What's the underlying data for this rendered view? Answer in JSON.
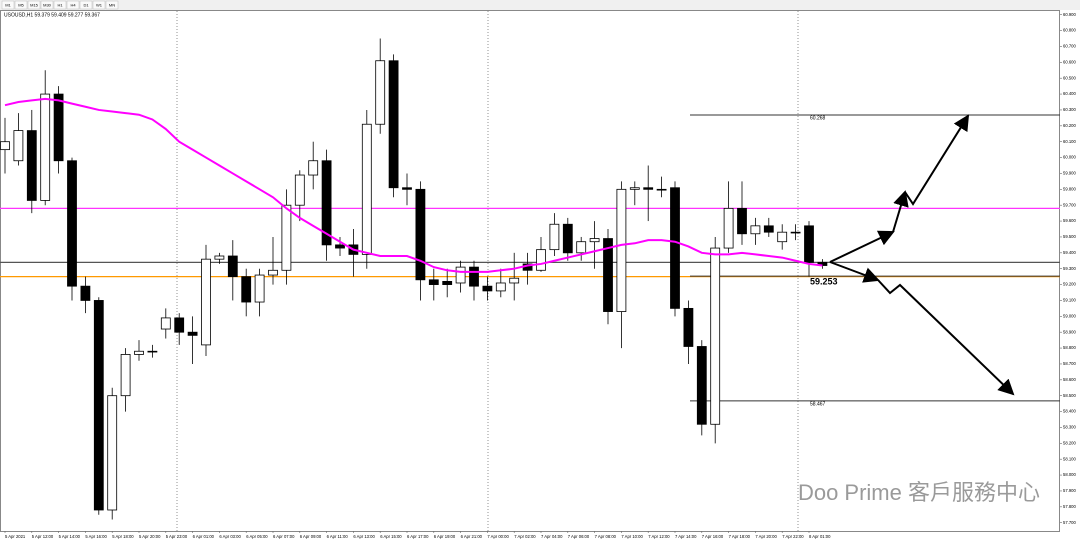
{
  "chart_data": {
    "type": "candlestick",
    "timeframes": [
      "M1",
      "M5",
      "M15",
      "M30",
      "H1",
      "H4",
      "D1",
      "W1",
      "MN"
    ],
    "subtitle": "USOUSD,H1 59.379 59.409 59.277 59.367",
    "watermark": "Doo Prime 客戶服務中心",
    "categories": [
      "5 Apr 2021",
      null,
      "5 Apr 12:00",
      null,
      "5 Apr 14:00",
      null,
      "5 Apr 16:00",
      null,
      "5 Apr 18:00",
      null,
      "5 Apr 20:00",
      null,
      "5 Apr 23:00",
      null,
      "6 Apr 01:00",
      null,
      "6 Apr 03:00",
      null,
      "6 Apr 05:00",
      null,
      "6 Apr 07:00",
      null,
      "6 Apr 09:00",
      null,
      "6 Apr 11:00",
      null,
      "6 Apr 13:00",
      null,
      "6 Apr 15:00",
      null,
      "6 Apr 17:00",
      null,
      "6 Apr 19:00",
      null,
      "6 Apr 21:00",
      null,
      "7 Apr 00:00",
      null,
      "7 Apr 02:00",
      null,
      "7 Apr 04:00",
      null,
      "7 Apr 06:00",
      null,
      "7 Apr 08:00",
      null,
      "7 Apr 10:00",
      null,
      "7 Apr 12:00",
      null,
      "7 Apr 14:00",
      null,
      "7 Apr 16:00",
      null,
      "7 Apr 18:00",
      null,
      "7 Apr 20:00",
      null,
      "7 Apr 22:00",
      null,
      "8 Apr 01:00",
      null
    ],
    "open": [
      60.05,
      59.98,
      60.17,
      59.73,
      60.4,
      59.98,
      59.19,
      59.1,
      57.78,
      58.5,
      58.76,
      58.78,
      58.92,
      58.99,
      58.9,
      58.82,
      59.36,
      59.38,
      59.25,
      59.09,
      59.26,
      59.29,
      59.7,
      59.89,
      59.98,
      59.45,
      59.45,
      59.39,
      60.21,
      60.61,
      59.81,
      59.8,
      59.23,
      59.22,
      59.21,
      59.31,
      59.19,
      59.16,
      59.21,
      59.33,
      59.29,
      59.42,
      59.58,
      59.4,
      59.47,
      59.49,
      59.03,
      59.8,
      59.81,
      59.8,
      59.81,
      59.05,
      58.81,
      58.32,
      59.43,
      59.68,
      59.52,
      59.57,
      59.47,
      59.53,
      59.57,
      59.34
    ],
    "high": [
      60.25,
      60.28,
      60.3,
      60.55,
      60.45,
      60.0,
      59.25,
      59.12,
      58.55,
      58.8,
      58.85,
      58.82,
      59.05,
      59.02,
      59.0,
      59.45,
      59.4,
      59.48,
      59.3,
      59.3,
      59.5,
      59.8,
      59.92,
      60.1,
      60.05,
      59.5,
      59.55,
      60.3,
      60.75,
      60.65,
      59.9,
      59.85,
      59.3,
      59.3,
      59.35,
      59.35,
      59.25,
      59.3,
      59.4,
      59.4,
      59.5,
      59.65,
      59.62,
      59.5,
      59.6,
      59.55,
      59.85,
      59.85,
      59.95,
      59.88,
      59.85,
      59.1,
      58.85,
      59.5,
      59.85,
      59.85,
      59.62,
      59.62,
      59.58,
      59.58,
      59.6,
      59.36
    ],
    "low": [
      59.9,
      59.95,
      59.65,
      59.7,
      59.9,
      59.1,
      59.02,
      57.75,
      57.72,
      58.4,
      58.72,
      58.74,
      58.86,
      58.82,
      58.7,
      58.75,
      59.33,
      59.1,
      59.0,
      59.0,
      59.2,
      59.2,
      59.6,
      59.8,
      59.35,
      59.38,
      59.25,
      59.3,
      60.15,
      59.75,
      59.7,
      59.1,
      59.1,
      59.12,
      59.15,
      59.1,
      59.1,
      59.12,
      59.1,
      59.2,
      59.28,
      59.38,
      59.35,
      59.35,
      59.3,
      58.95,
      58.8,
      59.7,
      59.6,
      59.75,
      59.0,
      58.7,
      58.25,
      58.2,
      59.4,
      59.45,
      59.45,
      59.5,
      59.42,
      59.48,
      59.25,
      59.3
    ],
    "close": [
      60.1,
      60.17,
      59.73,
      60.4,
      59.98,
      59.19,
      59.1,
      57.78,
      58.5,
      58.76,
      58.78,
      58.78,
      58.99,
      58.9,
      58.88,
      59.36,
      59.38,
      59.25,
      59.09,
      59.26,
      59.29,
      59.7,
      59.89,
      59.98,
      59.45,
      59.43,
      59.39,
      60.21,
      60.61,
      59.81,
      59.8,
      59.23,
      59.2,
      59.2,
      59.31,
      59.19,
      59.16,
      59.21,
      59.24,
      59.29,
      59.42,
      59.58,
      59.4,
      59.47,
      59.49,
      59.03,
      59.8,
      59.81,
      59.8,
      59.8,
      59.05,
      58.81,
      58.32,
      59.43,
      59.68,
      59.52,
      59.57,
      59.53,
      59.53,
      59.53,
      59.34,
      59.32
    ],
    "ma": {
      "color": "#ff00ff",
      "values": [
        60.33,
        60.35,
        60.36,
        60.37,
        60.36,
        60.34,
        60.32,
        60.3,
        60.29,
        60.28,
        60.27,
        60.24,
        60.18,
        60.1,
        60.05,
        60.0,
        59.95,
        59.9,
        59.85,
        59.8,
        59.75,
        59.68,
        59.62,
        59.57,
        59.52,
        59.47,
        59.42,
        59.4,
        59.38,
        59.38,
        59.38,
        59.35,
        59.31,
        59.29,
        59.28,
        59.28,
        59.28,
        59.29,
        59.3,
        59.32,
        59.33,
        59.35,
        59.37,
        59.39,
        59.41,
        59.43,
        59.45,
        59.46,
        59.48,
        59.48,
        59.47,
        59.44,
        59.4,
        59.39,
        59.39,
        59.4,
        59.39,
        59.38,
        59.37,
        59.35,
        59.33,
        59.32
      ]
    },
    "hlines": [
      {
        "value": 59.68,
        "color": "#ff33ff"
      },
      {
        "value": 59.34,
        "color": "#555555"
      },
      {
        "value": 59.25,
        "color": "#ff9900"
      }
    ],
    "levels": [
      60.268,
      59.253,
      58.467
    ],
    "ylim": [
      57.654,
      60.917
    ],
    "yticks": [
      {
        "value": 57.7,
        "label": "57.700"
      },
      {
        "value": 57.8,
        "label": "57.800"
      },
      {
        "value": 57.9,
        "label": "57.900"
      },
      {
        "value": 58.0,
        "label": "58.000"
      },
      {
        "value": 58.1,
        "label": "58.100"
      },
      {
        "value": 58.2,
        "label": "58.200"
      },
      {
        "value": 58.3,
        "label": "58.300"
      },
      {
        "value": 58.4,
        "label": "58.400"
      },
      {
        "value": 58.5,
        "label": "58.500"
      },
      {
        "value": 58.6,
        "label": "58.600"
      },
      {
        "value": 58.7,
        "label": "58.700"
      },
      {
        "value": 58.8,
        "label": "58.800"
      },
      {
        "value": 58.9,
        "label": "58.900"
      },
      {
        "value": 59.0,
        "label": "59.000"
      },
      {
        "value": 59.1,
        "label": "59.100"
      },
      {
        "value": 59.2,
        "label": "59.200"
      },
      {
        "value": 59.3,
        "label": "59.300"
      },
      {
        "value": 59.4,
        "label": "59.400"
      },
      {
        "value": 59.5,
        "label": "59.500"
      },
      {
        "value": 59.6,
        "label": "59.600"
      },
      {
        "value": 59.7,
        "label": "59.700"
      },
      {
        "value": 59.8,
        "label": "59.800"
      },
      {
        "value": 59.9,
        "label": "59.900"
      },
      {
        "value": 60.0,
        "label": "60.000"
      },
      {
        "value": 60.1,
        "label": "60.100"
      },
      {
        "value": 60.2,
        "label": "60.200"
      },
      {
        "value": 60.3,
        "label": "60.300"
      },
      {
        "value": 60.4,
        "label": "60.400"
      },
      {
        "value": 60.5,
        "label": "60.500"
      },
      {
        "value": 60.6,
        "label": "60.600"
      },
      {
        "value": 60.7,
        "label": "60.700"
      },
      {
        "value": 60.8,
        "label": "60.800"
      },
      {
        "value": 60.9,
        "label": "60.900"
      }
    ],
    "bull_color": "#ffffff",
    "bear_color": "#000000"
  }
}
